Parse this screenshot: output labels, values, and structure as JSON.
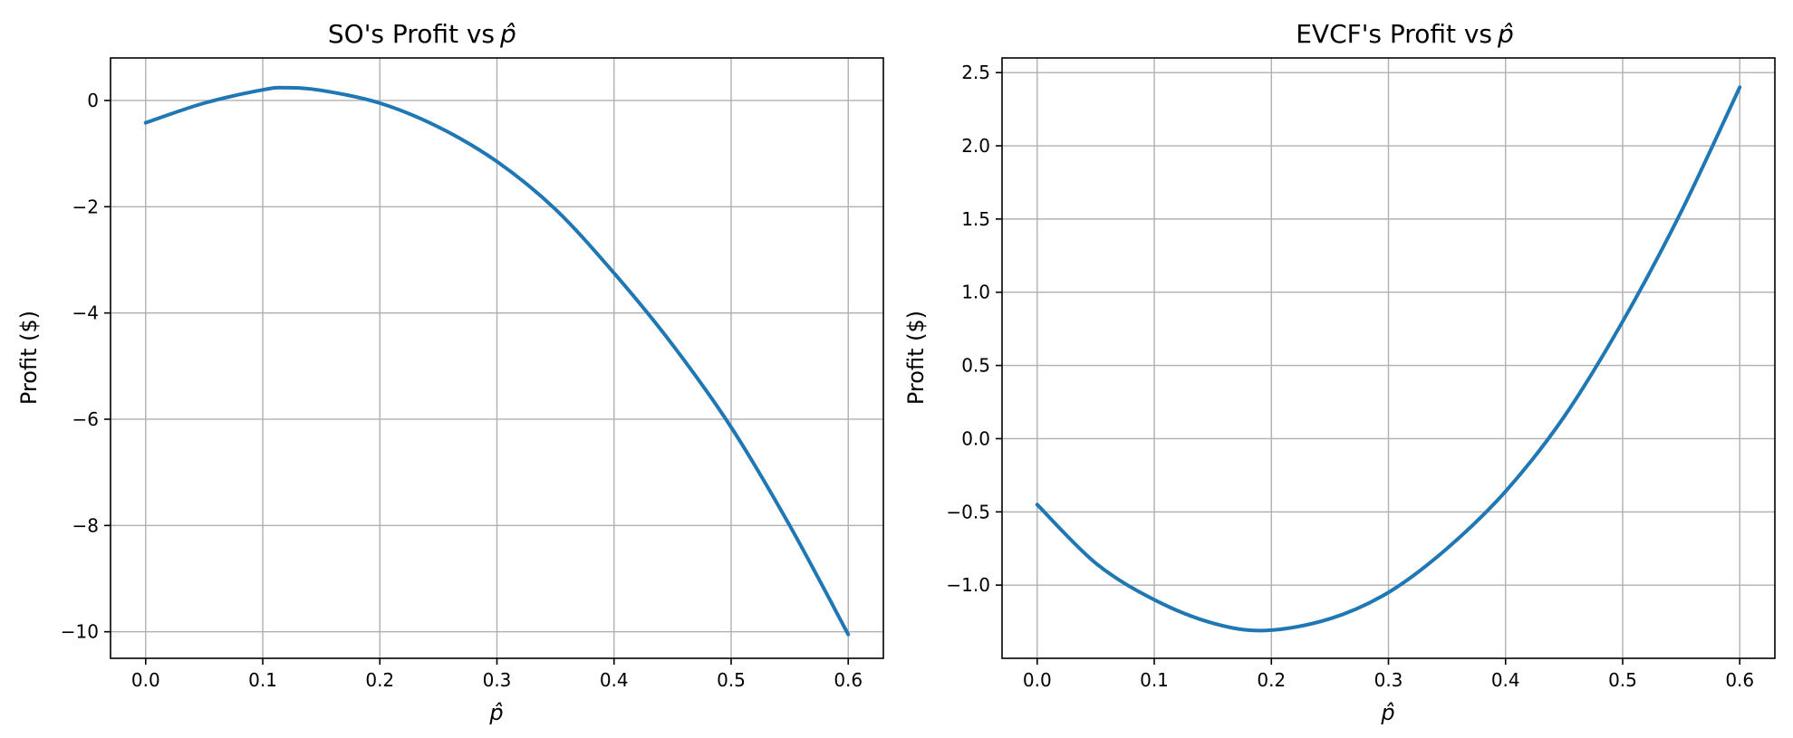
{
  "chart_data": [
    {
      "type": "line",
      "title": "SO's Profit vs",
      "xlabel": "p̂",
      "ylabel": "Profit ($)",
      "xlim": [
        -0.03,
        0.63
      ],
      "ylim": [
        -10.5,
        0.8
      ],
      "xticks": [
        0.0,
        0.1,
        0.2,
        0.3,
        0.4,
        0.5,
        0.6
      ],
      "xtick_labels": [
        "0.0",
        "0.1",
        "0.2",
        "0.3",
        "0.4",
        "0.5",
        "0.6"
      ],
      "yticks": [
        0,
        -2,
        -4,
        -6,
        -8,
        -10
      ],
      "ytick_labels": [
        "0",
        "−2",
        "−4",
        "−6",
        "−8",
        "−10"
      ],
      "grid": true,
      "series": [
        {
          "color": "#1f77b4",
          "x": [
            0.0,
            0.05,
            0.1,
            0.12,
            0.15,
            0.2,
            0.25,
            0.3,
            0.35,
            0.4,
            0.45,
            0.5,
            0.55,
            0.6
          ],
          "y": [
            -0.42,
            -0.05,
            0.2,
            0.24,
            0.19,
            -0.05,
            -0.5,
            -1.15,
            -2.05,
            -3.25,
            -4.6,
            -6.15,
            -8.0,
            -10.05
          ]
        }
      ]
    },
    {
      "type": "line",
      "title": "EVCF's Profit vs",
      "xlabel": "p̂",
      "ylabel": "Profit ($)",
      "xlim": [
        -0.03,
        0.63
      ],
      "ylim": [
        -1.5,
        2.6
      ],
      "xticks": [
        0.0,
        0.1,
        0.2,
        0.3,
        0.4,
        0.5,
        0.6
      ],
      "xtick_labels": [
        "0.0",
        "0.1",
        "0.2",
        "0.3",
        "0.4",
        "0.5",
        "0.6"
      ],
      "yticks": [
        2.5,
        2.0,
        1.5,
        1.0,
        0.5,
        0.0,
        -0.5,
        -1.0
      ],
      "ytick_labels": [
        "2.5",
        "2.0",
        "1.5",
        "1.0",
        "0.5",
        "0.0",
        "−0.5",
        "−1.0"
      ],
      "grid": true,
      "series": [
        {
          "color": "#1f77b4",
          "x": [
            0.0,
            0.05,
            0.1,
            0.15,
            0.195,
            0.25,
            0.3,
            0.35,
            0.4,
            0.45,
            0.5,
            0.55,
            0.6
          ],
          "y": [
            -0.45,
            -0.85,
            -1.1,
            -1.26,
            -1.31,
            -1.23,
            -1.05,
            -0.75,
            -0.36,
            0.15,
            0.8,
            1.55,
            2.4
          ]
        }
      ]
    }
  ]
}
